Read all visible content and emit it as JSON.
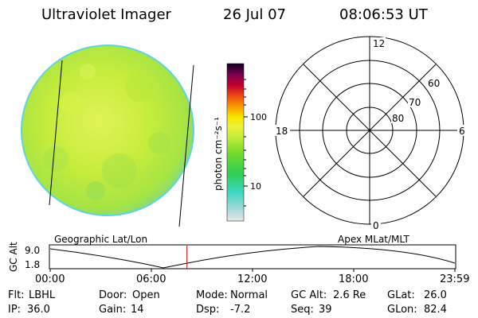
{
  "header": {
    "title": "Ultraviolet Imager",
    "date": "26 Jul 07",
    "time": "08:06:53 UT"
  },
  "colorbar": {
    "unit_label": "photon cm⁻²s⁻¹",
    "ticks": [
      "100",
      "10"
    ],
    "scale": "log"
  },
  "polar": {
    "mlt_labels": [
      "12",
      "18",
      "6",
      "0"
    ],
    "lat_labels": [
      "60",
      "70",
      "80"
    ]
  },
  "track": {
    "geo_label": "Geographic Lat/Lon",
    "apex_label": "Apex MLat/MLT",
    "axis_label": "GC Alt",
    "y_ticks": [
      "9.0",
      "1.8"
    ],
    "x_ticks": [
      "00:00",
      "06:00",
      "12:00",
      "18:00",
      "23:59"
    ],
    "current_time_fraction": 0.338
  },
  "info": {
    "row1": [
      {
        "label": "Flt:",
        "value": "LBHL"
      },
      {
        "label": "Door:",
        "value": "Open"
      },
      {
        "label": "Mode:",
        "value": "Normal"
      },
      {
        "label": "GC Alt:",
        "value": "2.6 Re"
      },
      {
        "label": "GLat:",
        "value": "26.0"
      }
    ],
    "row2": [
      {
        "label": "IP:",
        "value": "36.0"
      },
      {
        "label": "Gain:",
        "value": "14"
      },
      {
        "label": "Dsp:",
        "value": "-7.2"
      },
      {
        "label": "Seq:",
        "value": "39"
      },
      {
        "label": "GLon:",
        "value": "82.4"
      }
    ]
  },
  "colors": {
    "image_fill": "#c8ee3a",
    "track_marker": "#cc0000"
  }
}
